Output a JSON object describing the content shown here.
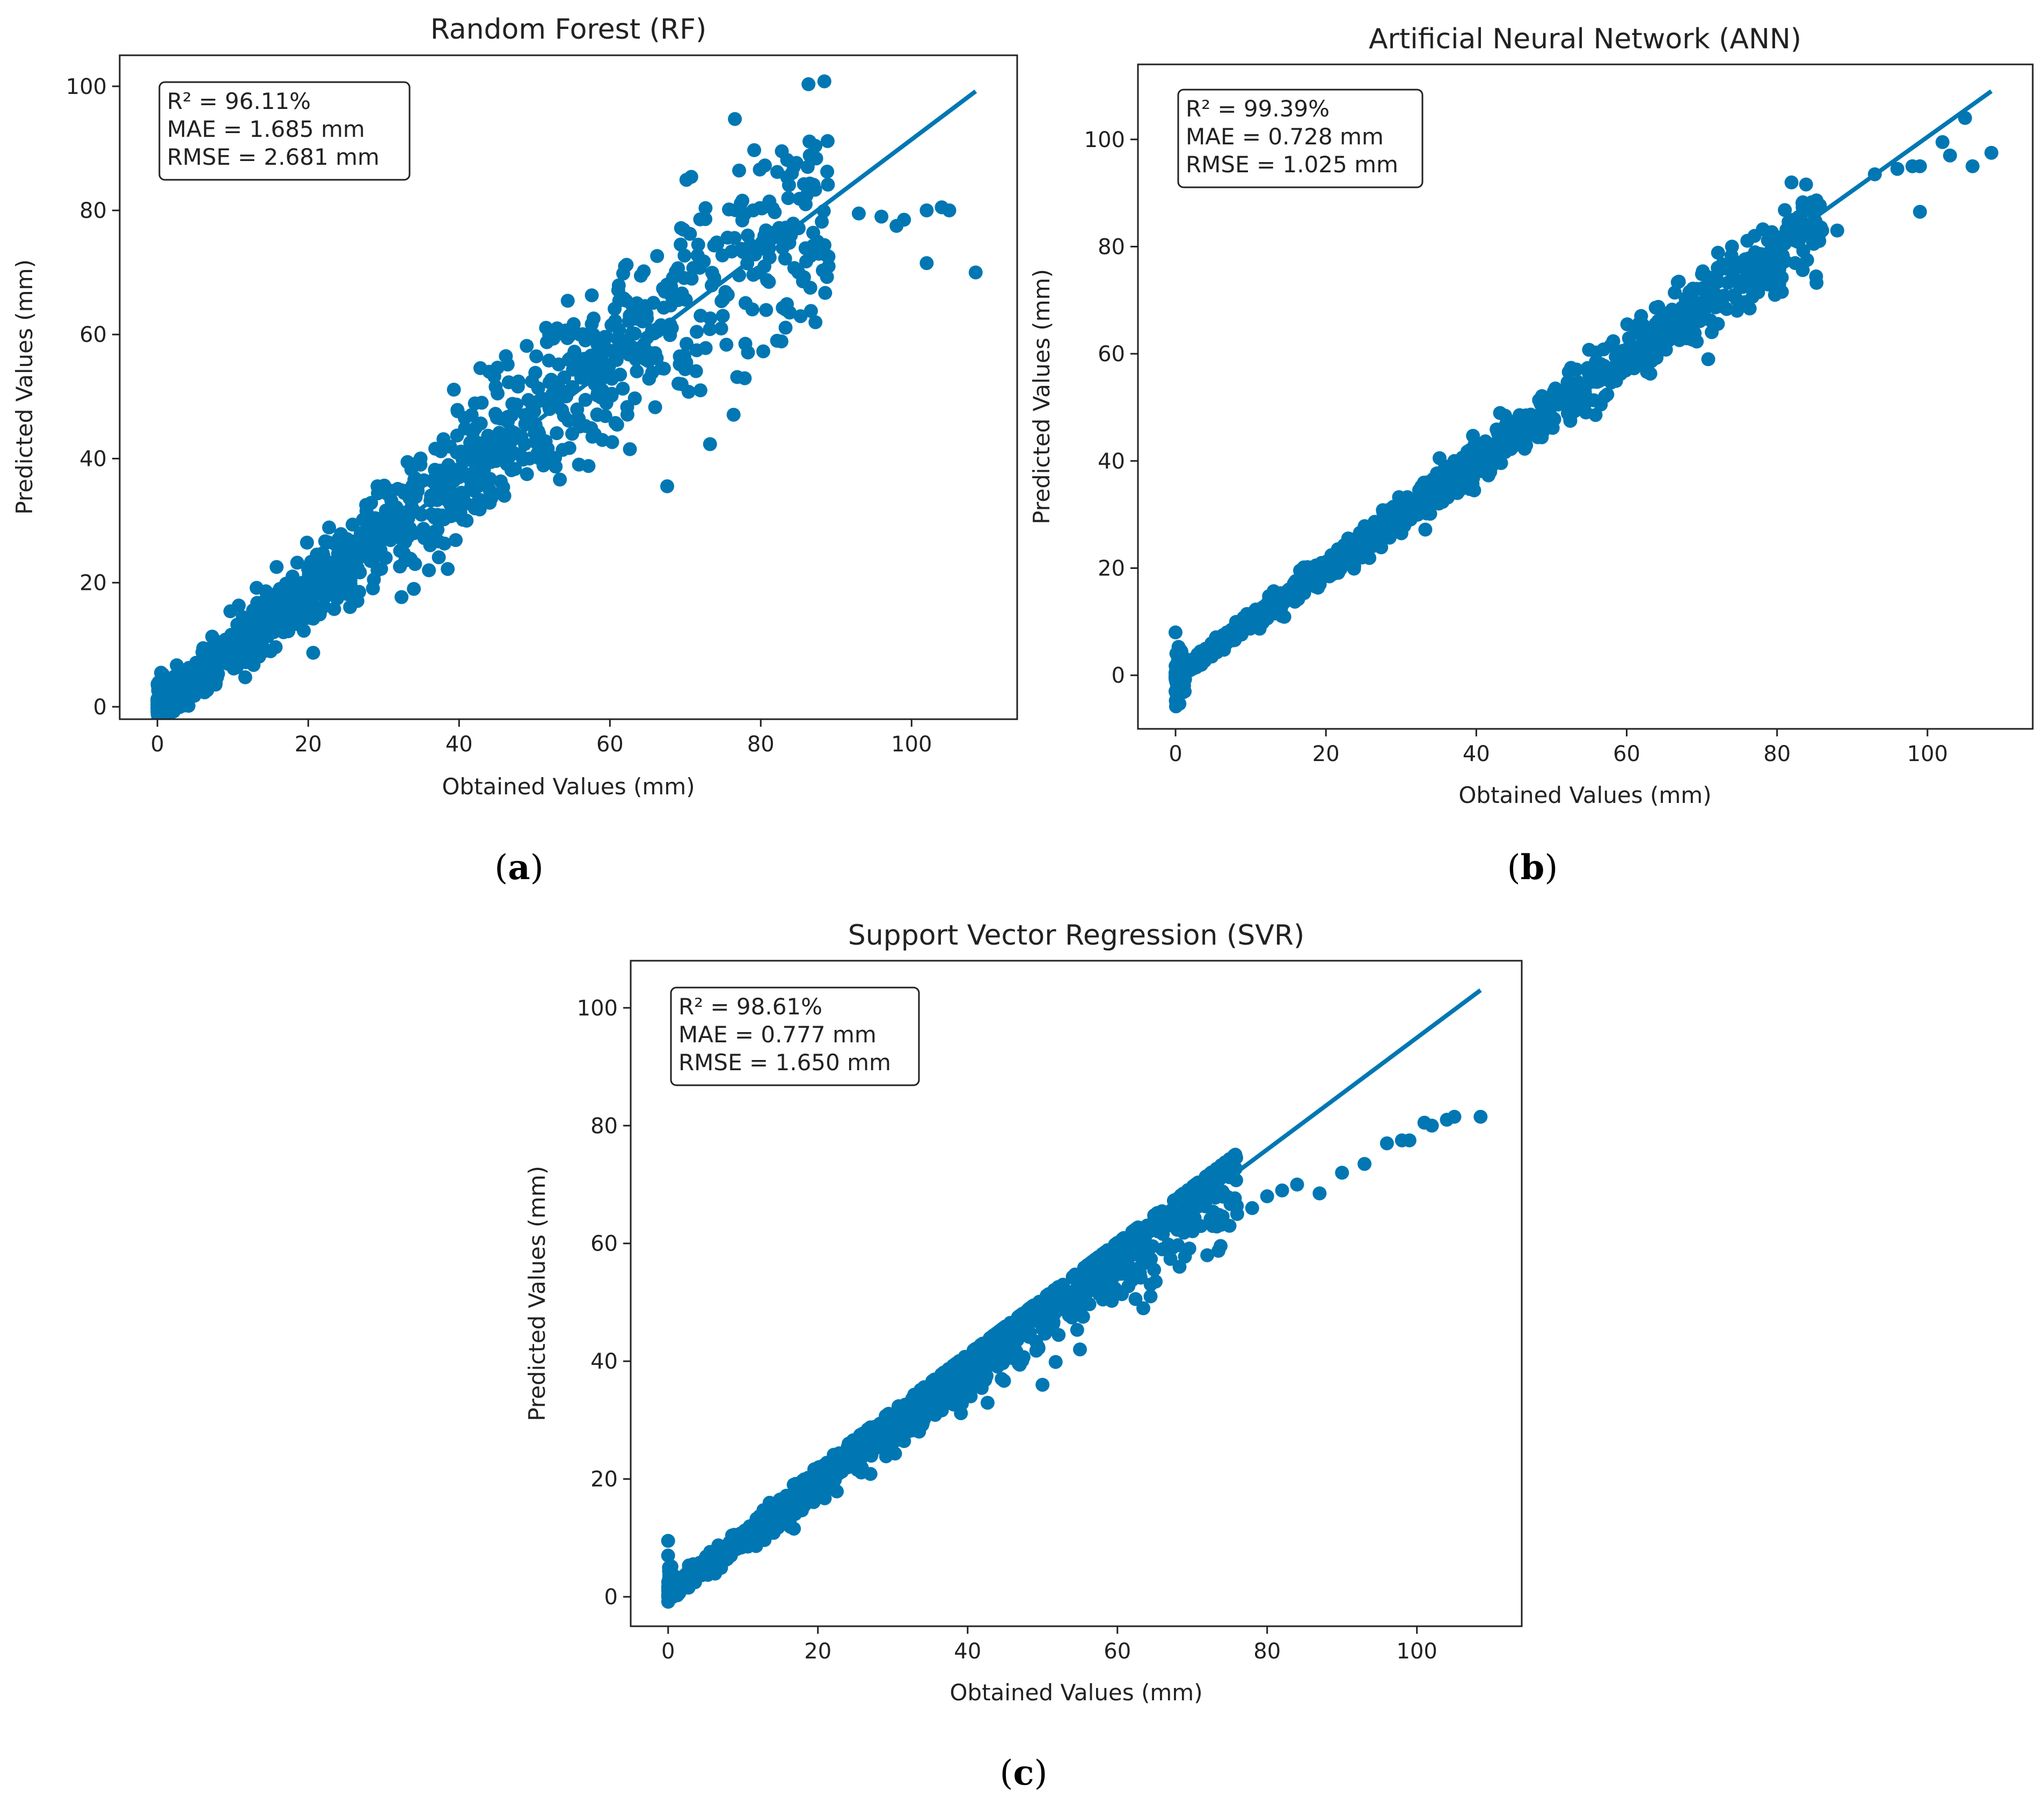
{
  "colors": {
    "series": "#0077b3",
    "frame": "#222222",
    "text": "#222222"
  },
  "chart_data": [
    {
      "type": "scatter",
      "panel": "a",
      "caption": "(a)",
      "title": "Random Forest (RF)",
      "xlabel": "Obtained Values (mm)",
      "ylabel": "Predicted Values (mm)",
      "xlim": [
        -5,
        114
      ],
      "ylim": [
        -2,
        105
      ],
      "xticks": [
        0,
        20,
        40,
        60,
        80,
        100
      ],
      "yticks": [
        0,
        20,
        40,
        60,
        80,
        100
      ],
      "stats": [
        "R² = 96.11%",
        "MAE = 1.685 mm",
        "RMSE = 2.681 mm"
      ],
      "fit_line": {
        "x": [
          0,
          108.5
        ],
        "y": [
          0,
          99.2
        ]
      },
      "trend": {
        "x_max": 89,
        "slope": 0.93,
        "spread": 3.0
      },
      "outliers": [
        [
          108.5,
          70
        ],
        [
          105,
          80
        ],
        [
          104,
          80.5
        ],
        [
          102,
          80
        ],
        [
          102,
          71.5
        ],
        [
          98,
          77.5
        ],
        [
          99,
          78.5
        ],
        [
          96,
          79
        ],
        [
          93,
          79.5
        ],
        [
          89,
          71
        ],
        [
          85,
          70
        ],
        [
          84,
          76
        ],
        [
          79,
          80
        ],
        [
          70,
          55.5
        ],
        [
          62,
          71
        ],
        [
          72,
          51
        ],
        [
          69.5,
          52
        ],
        [
          66,
          57
        ],
        [
          59,
          51
        ],
        [
          55,
          44
        ],
        [
          59,
          43
        ],
        [
          58,
          52
        ],
        [
          56,
          60
        ],
        [
          53,
          61
        ],
        [
          44,
          54
        ],
        [
          41,
          30
        ],
        [
          46,
          34
        ],
        [
          49,
          37.5
        ],
        [
          36,
          22
        ],
        [
          34,
          19
        ],
        [
          40,
          37
        ],
        [
          43,
          49
        ],
        [
          24,
          27
        ]
      ]
    },
    {
      "type": "scatter",
      "panel": "b",
      "caption": "(b)",
      "title": "Artificial Neural Network (ANN)",
      "xlabel": "Obtained Values (mm)",
      "ylabel": "Predicted Values (mm)",
      "xlim": [
        -5,
        114
      ],
      "ylim": [
        -10,
        114
      ],
      "xticks": [
        0,
        20,
        40,
        60,
        80,
        100
      ],
      "yticks": [
        0,
        20,
        40,
        60,
        80,
        100
      ],
      "stats": [
        "R² = 99.39%",
        "MAE = 0.728 mm",
        "RMSE = 1.025 mm"
      ],
      "fit_line": {
        "x": [
          0,
          108.5
        ],
        "y": [
          0,
          109
        ]
      },
      "trend": {
        "x_max": 86,
        "slope": 0.99,
        "spread": 1.3
      },
      "outliers": [
        [
          108.5,
          97.5
        ],
        [
          106,
          95
        ],
        [
          105,
          104
        ],
        [
          103,
          97
        ],
        [
          102,
          99.5
        ],
        [
          99,
          95
        ],
        [
          99,
          86.5
        ],
        [
          98,
          95
        ],
        [
          96,
          94.5
        ],
        [
          93,
          93.5
        ],
        [
          88,
          83
        ],
        [
          85,
          85
        ],
        [
          84,
          77.5
        ],
        [
          86,
          83
        ],
        [
          74,
          80
        ],
        [
          75.5,
          77
        ],
        [
          77,
          82
        ],
        [
          66,
          65
        ],
        [
          70,
          72
        ],
        [
          0,
          8
        ],
        [
          0.3,
          -4
        ],
        [
          0.5,
          5
        ],
        [
          0,
          -3
        ]
      ]
    },
    {
      "type": "scatter",
      "panel": "c",
      "caption": "(c)",
      "title": "Support Vector Regression (SVR)",
      "xlabel": "Obtained Values (mm)",
      "ylabel": "Predicted Values (mm)",
      "xlim": [
        -5,
        114
      ],
      "ylim": [
        -5,
        108
      ],
      "xticks": [
        0,
        20,
        40,
        60,
        80,
        100
      ],
      "yticks": [
        0,
        20,
        40,
        60,
        80,
        100
      ],
      "stats": [
        "R² = 98.61%",
        "MAE = 0.777 mm",
        "RMSE = 1.650 mm"
      ],
      "fit_line": {
        "x": [
          0,
          108.5
        ],
        "y": [
          0,
          103
        ]
      },
      "trend": {
        "x_max": 76,
        "slope": 0.94,
        "spread": 1.6
      },
      "outliers": [
        [
          108.5,
          81.5
        ],
        [
          105,
          81.5
        ],
        [
          104,
          81
        ],
        [
          102,
          80
        ],
        [
          101,
          80.5
        ],
        [
          99,
          77.5
        ],
        [
          98,
          77.5
        ],
        [
          96,
          77
        ],
        [
          93,
          73.5
        ],
        [
          90,
          72
        ],
        [
          87,
          68.5
        ],
        [
          84,
          70
        ],
        [
          82,
          69
        ],
        [
          80,
          68
        ],
        [
          78,
          66
        ],
        [
          72,
          58
        ],
        [
          76,
          65
        ],
        [
          63,
          55
        ],
        [
          60,
          55
        ],
        [
          55,
          42
        ],
        [
          43,
          41
        ],
        [
          50,
          36
        ],
        [
          0,
          9.5
        ],
        [
          0,
          7
        ],
        [
          0.2,
          5
        ]
      ]
    }
  ]
}
